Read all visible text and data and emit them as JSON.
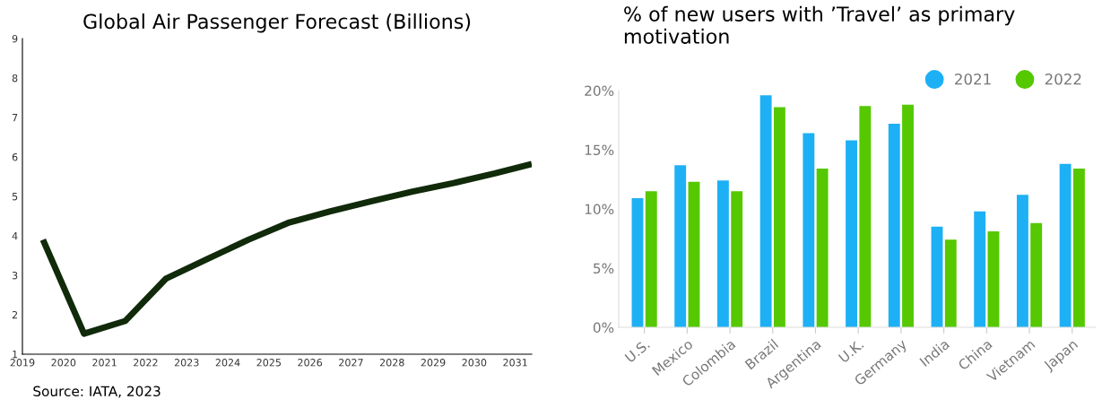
{
  "chart_data": [
    {
      "type": "line",
      "title": "Global Air Passenger Forecast (Billions)",
      "x": [
        2019.5,
        2020.5,
        2021.5,
        2022.5,
        2023.5,
        2024.5,
        2025.5,
        2026.5,
        2027.5,
        2028.5,
        2029.5,
        2030.5,
        2031.4
      ],
      "series": [
        {
          "color": "#102a0a",
          "values": [
            3.9,
            1.52,
            1.84,
            2.92,
            3.41,
            3.9,
            4.34,
            4.62,
            4.88,
            5.12,
            5.34,
            5.58,
            5.82
          ]
        }
      ],
      "xlim": [
        2019,
        2031.4
      ],
      "xticks": [
        2019,
        2020,
        2021,
        2022,
        2023,
        2024,
        2025,
        2026,
        2027,
        2028,
        2029,
        2030,
        2031
      ],
      "ylim": [
        1,
        9
      ],
      "yticks": [
        1,
        2,
        3,
        4,
        5,
        6,
        7,
        8,
        9
      ],
      "grid": false,
      "marker": "none",
      "line_style": "solid",
      "annotations": [
        "Source: IATA, 2023"
      ]
    },
    {
      "type": "bar",
      "title": "% of new users with ’Travel’ as primary motivation",
      "categories": [
        "U.S.",
        "Mexico",
        "Colombia",
        "Brazil",
        "Argentina",
        "U.K.",
        "Germany",
        "India",
        "China",
        "Vietnam",
        "Japan"
      ],
      "series": [
        {
          "name": "2021",
          "color": "#1eb0f5",
          "values": [
            10.9,
            13.7,
            12.4,
            19.6,
            16.4,
            15.8,
            17.2,
            8.5,
            9.8,
            11.2,
            13.8
          ]
        },
        {
          "name": "2022",
          "color": "#55c800",
          "values": [
            11.5,
            12.3,
            11.5,
            18.6,
            13.4,
            18.7,
            18.8,
            7.4,
            8.1,
            8.8,
            13.4
          ]
        }
      ],
      "ylim": [
        0,
        20
      ],
      "yticks": [
        {
          "value": 0,
          "label": "0%"
        },
        {
          "value": 5,
          "label": "5%"
        },
        {
          "value": 10,
          "label": "10%"
        },
        {
          "value": 15,
          "label": "15%"
        },
        {
          "value": 20,
          "label": "20%"
        }
      ],
      "grid": false,
      "legend": "top right"
    }
  ]
}
